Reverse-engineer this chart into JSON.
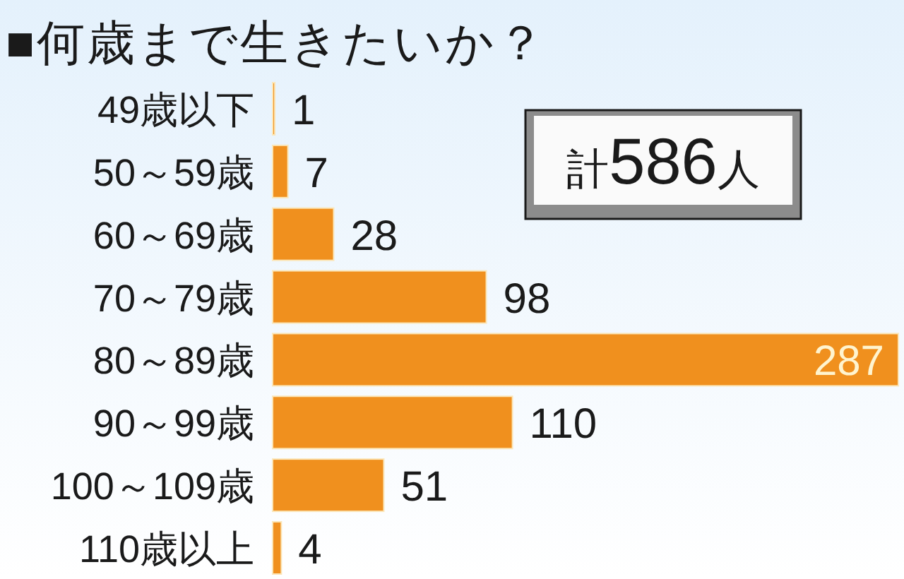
{
  "chart_data": {
    "type": "bar",
    "orientation": "horizontal",
    "title": "■何歳まで生きたいか？",
    "categories": [
      "49歳以下",
      "50～59歳",
      "60～69歳",
      "70～79歳",
      "80～89歳",
      "90～99歳",
      "100～109歳",
      "110歳以上"
    ],
    "values": [
      1,
      7,
      28,
      98,
      287,
      110,
      51,
      4
    ],
    "color": "#f0901e",
    "data_labels": true,
    "annotations": [
      "計586人"
    ]
  }
}
